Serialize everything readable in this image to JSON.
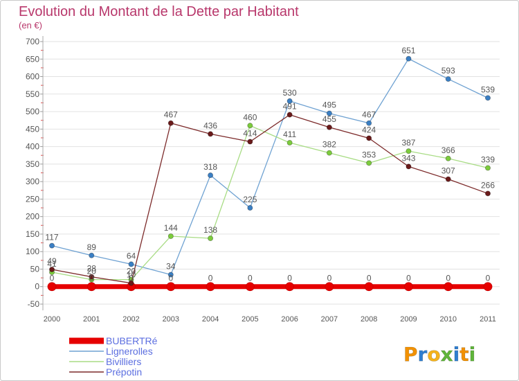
{
  "chart_data": {
    "type": "line",
    "title": "Evolution du Montant de la Dette par Habitant",
    "subtitle": "(en €)",
    "categories": [
      "2000",
      "2001",
      "2002",
      "2003",
      "2004",
      "2005",
      "2006",
      "2007",
      "2008",
      "2009",
      "2010",
      "2011"
    ],
    "ylim": [
      -50,
      700
    ],
    "yticks": [
      -50,
      0,
      50,
      100,
      150,
      200,
      250,
      300,
      350,
      400,
      450,
      500,
      550,
      600,
      650,
      700
    ],
    "grid": "horizontal",
    "legend_position": "bottom-left",
    "series": [
      {
        "name": "BUBERTRé",
        "color": "#e60000",
        "point_color": "#e60000",
        "values": [
          0,
          0,
          0,
          0,
          0,
          0,
          0,
          0,
          0,
          0,
          0,
          0
        ]
      },
      {
        "name": "Lignerolles",
        "color": "#6fa2d2",
        "point_color": "#3a7fc4",
        "values": [
          117,
          89,
          64,
          34,
          318,
          225,
          530,
          495,
          467,
          651,
          593,
          539
        ]
      },
      {
        "name": "Bivilliers",
        "color": "#a8dc84",
        "point_color": "#7ccc3c",
        "values": [
          41,
          20,
          20,
          144,
          138,
          460,
          411,
          382,
          353,
          387,
          366,
          339
        ]
      },
      {
        "name": "Prépotin",
        "color": "#7c2a2a",
        "point_color": "#6a1a1a",
        "values": [
          49,
          28,
          10,
          467,
          436,
          414,
          491,
          455,
          424,
          343,
          307,
          266
        ]
      }
    ]
  },
  "logo": {
    "text": "Proxiti",
    "colors": [
      "#f29100",
      "#2f7fd1",
      "#f5b31b",
      "#5fb53a",
      "#2f7fd1",
      "#f29100",
      "#5fb53a"
    ]
  }
}
